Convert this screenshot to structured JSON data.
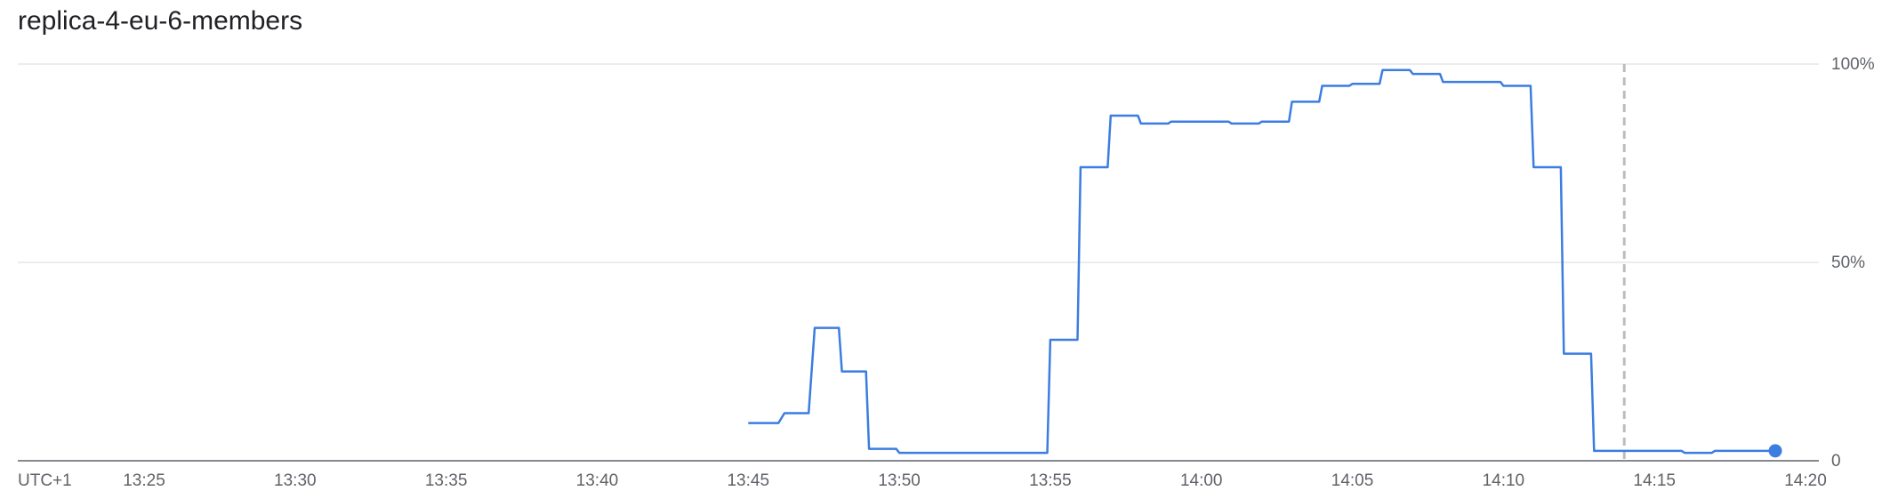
{
  "chart_data": {
    "type": "line",
    "title": "replica-4-eu-6-members",
    "timezone_label": "UTC+1",
    "x_ticks": [
      "13:25",
      "13:30",
      "13:35",
      "13:40",
      "13:45",
      "13:50",
      "13:55",
      "14:00",
      "14:05",
      "14:10",
      "14:15",
      "14:20"
    ],
    "y_ticks": [
      "0",
      "50%",
      "100%"
    ],
    "xlim": [
      "13:21",
      "14:21"
    ],
    "ylim": [
      0,
      100
    ],
    "grid": "horizontal",
    "legend": "none",
    "marker_time": "14:14",
    "series": [
      {
        "color": "#3b7de0",
        "interpolation": "step",
        "points": [
          [
            "13:45",
            9.5
          ],
          [
            "13:46",
            9.5
          ],
          [
            "13:46.2",
            12
          ],
          [
            "13:47",
            12
          ],
          [
            "13:47.2",
            33.5
          ],
          [
            "13:48",
            33.5
          ],
          [
            "13:48.1",
            22.5
          ],
          [
            "13:48.9",
            22.5
          ],
          [
            "13:49",
            3
          ],
          [
            "13:49.9",
            3
          ],
          [
            "13:50",
            2
          ],
          [
            "13:54.9",
            2
          ],
          [
            "13:55",
            30.5
          ],
          [
            "13:55.9",
            30.5
          ],
          [
            "13:56",
            74
          ],
          [
            "13:56.9",
            74
          ],
          [
            "13:57",
            87
          ],
          [
            "13:57.9",
            87
          ],
          [
            "13:58",
            85
          ],
          [
            "13:58.9",
            85
          ],
          [
            "13:59",
            85.5
          ],
          [
            "14:00.9",
            85.5
          ],
          [
            "14:01",
            85
          ],
          [
            "14:01.9",
            85
          ],
          [
            "14:02",
            85.5
          ],
          [
            "14:02.9",
            85.5
          ],
          [
            "14:03",
            90.5
          ],
          [
            "14:03.9",
            90.5
          ],
          [
            "14:04",
            94.5
          ],
          [
            "14:04.9",
            94.5
          ],
          [
            "14:05",
            95
          ],
          [
            "14:05.9",
            95
          ],
          [
            "14:06",
            98.5
          ],
          [
            "14:06.9",
            98.5
          ],
          [
            "14:07",
            97.5
          ],
          [
            "14:07.9",
            97.5
          ],
          [
            "14:08",
            95.5
          ],
          [
            "14:09.9",
            95.5
          ],
          [
            "14:10",
            94.5
          ],
          [
            "14:10.9",
            94.5
          ],
          [
            "14:11",
            74
          ],
          [
            "14:11.9",
            74
          ],
          [
            "14:12",
            27
          ],
          [
            "14:12.9",
            27
          ],
          [
            "14:13",
            2.5
          ],
          [
            "14:15.9",
            2.5
          ],
          [
            "14:16",
            2
          ],
          [
            "14:16.9",
            2
          ],
          [
            "14:17",
            2.5
          ],
          [
            "14:19",
            2.5
          ]
        ]
      }
    ]
  }
}
